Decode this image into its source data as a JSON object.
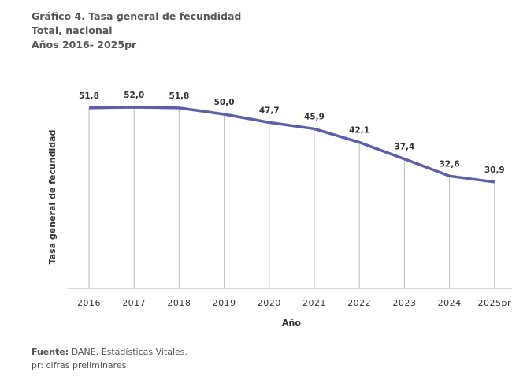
{
  "chart_data": {
    "type": "line",
    "title": "Gráfico 4. Tasa general de fecundidad",
    "subtitle": [
      "Total, nacional",
      "Años 2016- 2025pr"
    ],
    "xlabel": "Año",
    "ylabel": "Tasa general de fecundidad",
    "categories": [
      "2016",
      "2017",
      "2018",
      "2019",
      "2020",
      "2021",
      "2022",
      "2023",
      "2024",
      "2025pr"
    ],
    "values": [
      51.8,
      52.0,
      51.8,
      50.0,
      47.7,
      45.9,
      42.1,
      37.4,
      32.6,
      30.9
    ],
    "data_labels": [
      "51,8",
      "52,0",
      "51,8",
      "50,0",
      "47,7",
      "45,9",
      "42,1",
      "37,4",
      "32,6",
      "30,9"
    ],
    "ylim": [
      0,
      52
    ],
    "grid": false,
    "drop_lines": true,
    "line_color": "#5a5fa8"
  },
  "footer": {
    "source_label": "Fuente:",
    "source_text": " DANE, Estadísticas Vitales.",
    "note": "pr: cifras preliminares"
  }
}
